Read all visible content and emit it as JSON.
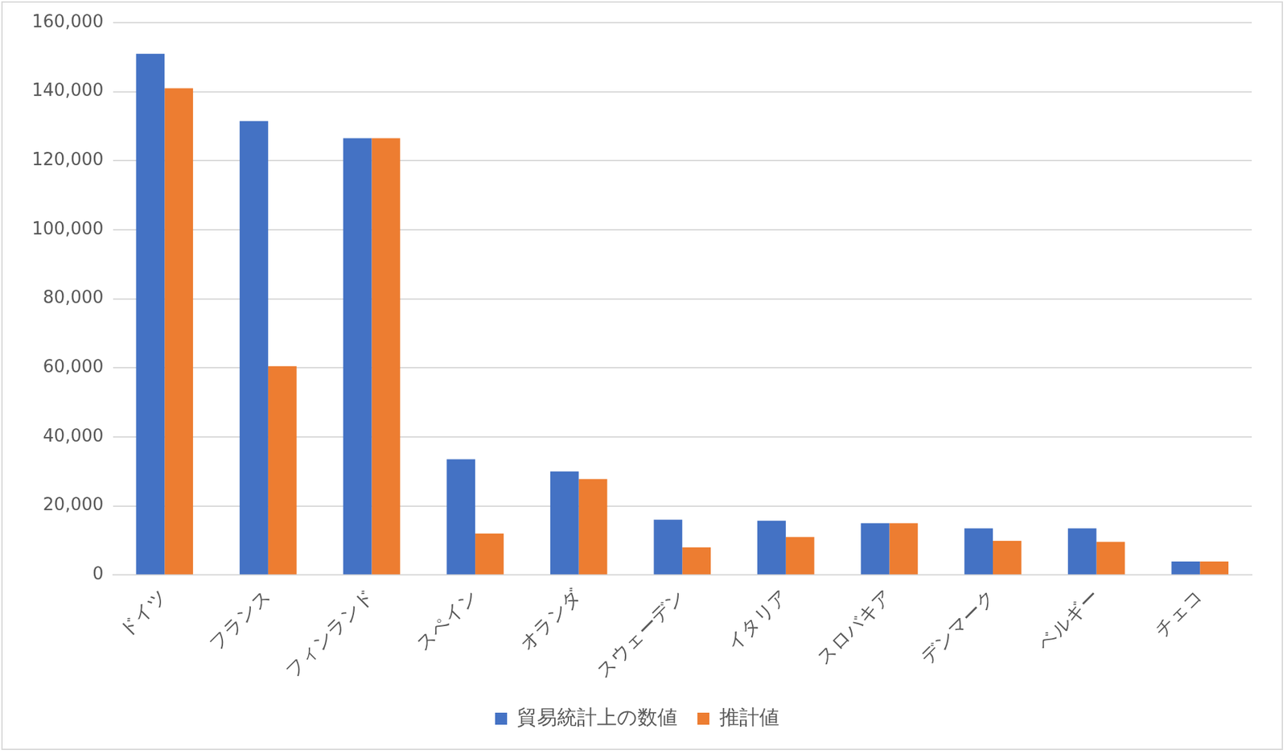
{
  "chart_data": {
    "type": "bar",
    "categories": [
      "ドイツ",
      "フランス",
      "フィンランド",
      "スペイン",
      "オランダ",
      "スウェーデン",
      "イタリア",
      "スロバキア",
      "デンマーク",
      "ベルギー",
      "チェコ"
    ],
    "series": [
      {
        "name": "貿易統計上の数値",
        "color": "#4472c4",
        "values": [
          151000,
          131500,
          126500,
          33500,
          30000,
          16000,
          15700,
          15000,
          13500,
          13500,
          3900
        ]
      },
      {
        "name": "推計値",
        "color": "#ed7d31",
        "values": [
          141000,
          60500,
          126500,
          12000,
          27800,
          8000,
          11000,
          15000,
          9900,
          9600,
          3900
        ]
      }
    ],
    "ylim": [
      0,
      160000
    ],
    "yticks": [
      0,
      {
        "value": 20000,
        "label": "20,000"
      },
      {
        "value": 40000,
        "label": "40,000"
      },
      {
        "value": 60000,
        "label": "60,000"
      },
      {
        "value": 80000,
        "label": "80,000"
      },
      {
        "value": 100000,
        "label": "100,000"
      },
      {
        "value": 120000,
        "label": "120,000"
      },
      {
        "value": 140000,
        "label": "140,000"
      },
      {
        "value": 160000,
        "label": "160,000"
      }
    ],
    "grid": true,
    "legend": "bottom"
  }
}
